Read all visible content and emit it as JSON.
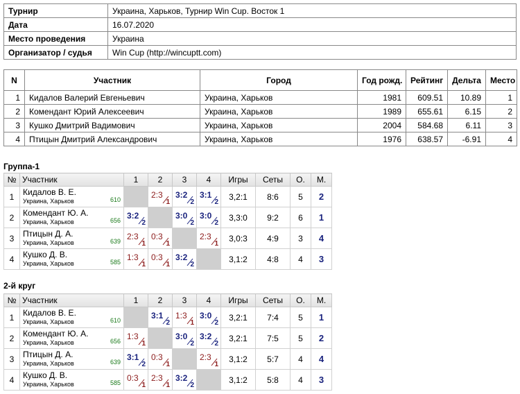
{
  "info": {
    "rows": [
      [
        "Турнир",
        "Украина, Харьков, Турнир Win Cup. Восток 1"
      ],
      [
        "Дата",
        "16.07.2020"
      ],
      [
        "Место проведения",
        "Украина"
      ],
      [
        "Организатор / судья",
        "Win Cup (http://wincuptt.com)"
      ]
    ]
  },
  "participants": {
    "header": [
      "N",
      "Участник",
      "Город",
      "Год рожд.",
      "Рейтинг",
      "Дельта",
      "Место"
    ],
    "rows": [
      [
        1,
        "Кидалов Валерий Евгеньевич",
        "Украина, Харьков",
        1981,
        609.51,
        10.89,
        1
      ],
      [
        2,
        "Комендант Юрий Алексеевич",
        "Украина, Харьков",
        1989,
        655.61,
        6.15,
        2
      ],
      [
        3,
        "Кушко Дмитрий Вадимович",
        "Украина, Харьков",
        2004,
        584.68,
        6.11,
        3
      ],
      [
        4,
        "Птицын Дмитрий Александрович",
        "Украина, Харьков",
        1976,
        638.57,
        -6.91,
        4
      ]
    ]
  },
  "groups": [
    {
      "title": "Группа-1",
      "header": [
        "№",
        "Участник",
        "1",
        "2",
        "3",
        "4",
        "Игры",
        "Сеты",
        "О.",
        "М."
      ],
      "rows": [
        {
          "n": 1,
          "name": "Кидалов В. Е.",
          "city": "Украина, Харьков",
          "rating": 610,
          "results": [
            null,
            {
              "score": "2:3",
              "points": 1
            },
            {
              "score": "3:2",
              "points": 2
            },
            {
              "score": "3:1",
              "points": 2
            }
          ],
          "games": "3,2:1",
          "sets": "8:6",
          "total": 5,
          "place": 2
        },
        {
          "n": 2,
          "name": "Комендант Ю. А.",
          "city": "Украина, Харьков",
          "rating": 656,
          "results": [
            {
              "score": "3:2",
              "points": 2
            },
            null,
            {
              "score": "3:0",
              "points": 2
            },
            {
              "score": "3:0",
              "points": 2
            }
          ],
          "games": "3,3:0",
          "sets": "9:2",
          "total": 6,
          "place": 1
        },
        {
          "n": 3,
          "name": "Птицын Д. А.",
          "city": "Украина, Харьков",
          "rating": 639,
          "results": [
            {
              "score": "2:3",
              "points": 1
            },
            {
              "score": "0:3",
              "points": 1
            },
            null,
            {
              "score": "2:3",
              "points": 1
            }
          ],
          "games": "3,0:3",
          "sets": "4:9",
          "total": 3,
          "place": 4
        },
        {
          "n": 4,
          "name": "Кушко Д. В.",
          "city": "Украина, Харьков",
          "rating": 585,
          "results": [
            {
              "score": "1:3",
              "points": 1
            },
            {
              "score": "0:3",
              "points": 1
            },
            {
              "score": "3:2",
              "points": 2
            },
            null
          ],
          "games": "3,1:2",
          "sets": "4:8",
          "total": 4,
          "place": 3
        }
      ]
    },
    {
      "title": "2-й круг",
      "header": [
        "№",
        "Участник",
        "1",
        "2",
        "3",
        "4",
        "Игры",
        "Сеты",
        "О.",
        "М."
      ],
      "rows": [
        {
          "n": 1,
          "name": "Кидалов В. Е.",
          "city": "Украина, Харьков",
          "rating": 610,
          "results": [
            null,
            {
              "score": "3:1",
              "points": 2
            },
            {
              "score": "1:3",
              "points": 1
            },
            {
              "score": "3:0",
              "points": 2
            }
          ],
          "games": "3,2:1",
          "sets": "7:4",
          "total": 5,
          "place": 1
        },
        {
          "n": 2,
          "name": "Комендант Ю. А.",
          "city": "Украина, Харьков",
          "rating": 656,
          "results": [
            {
              "score": "1:3",
              "points": 1
            },
            null,
            {
              "score": "3:0",
              "points": 2
            },
            {
              "score": "3:2",
              "points": 2
            }
          ],
          "games": "3,2:1",
          "sets": "7:5",
          "total": 5,
          "place": 2
        },
        {
          "n": 3,
          "name": "Птицын Д. А.",
          "city": "Украина, Харьков",
          "rating": 639,
          "results": [
            {
              "score": "3:1",
              "points": 2
            },
            {
              "score": "0:3",
              "points": 1
            },
            null,
            {
              "score": "2:3",
              "points": 1
            }
          ],
          "games": "3,1:2",
          "sets": "5:7",
          "total": 4,
          "place": 4
        },
        {
          "n": 4,
          "name": "Кушко Д. В.",
          "city": "Украина, Харьков",
          "rating": 585,
          "results": [
            {
              "score": "0:3",
              "points": 1
            },
            {
              "score": "2:3",
              "points": 1
            },
            {
              "score": "3:2",
              "points": 2
            },
            null
          ],
          "games": "3,1:2",
          "sets": "5:8",
          "total": 4,
          "place": 3
        }
      ]
    }
  ]
}
